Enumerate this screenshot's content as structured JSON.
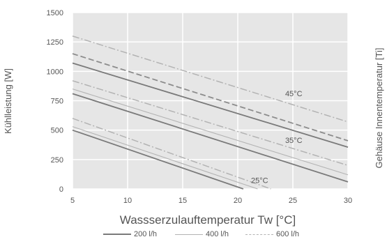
{
  "chart_data": {
    "type": "line",
    "xlabel": "Wassserzulauftemperatur Tw [°C]",
    "ylabel": "Kühlleistung [W]",
    "y2label": "Gehäuse Innentemperatur [Ti]",
    "xlim": [
      5,
      30
    ],
    "ylim": [
      0,
      1500
    ],
    "x_ticks": [
      5,
      10,
      15,
      20,
      25,
      30
    ],
    "y_ticks": [
      0,
      250,
      500,
      750,
      1000,
      1250,
      1500
    ],
    "grid": true,
    "background": "#e6e6e6",
    "legend": {
      "placement": "bottom",
      "entries": [
        {
          "label": "200 l/h",
          "style": "solid",
          "color": "#7a7a7a"
        },
        {
          "label": "400 l/h",
          "style": "solid-thin",
          "color": "#b3b3b3"
        },
        {
          "label": "600 l/h",
          "style": "dash-dot",
          "color": "#b3b3b3"
        }
      ]
    },
    "annotations": [
      {
        "text": "45°C",
        "x": 24.3,
        "y": 790
      },
      {
        "text": "35°C",
        "x": 24.3,
        "y": 390
      },
      {
        "text": "25°C",
        "x": 21.2,
        "y": 50
      }
    ],
    "series": [
      {
        "group": "45°C",
        "flow": "200 l/h",
        "style": "solid",
        "x": [
          5,
          30
        ],
        "y": [
          1070,
          355
        ]
      },
      {
        "group": "45°C",
        "flow": "400 l/h",
        "style": "dashed",
        "x": [
          5,
          30
        ],
        "y": [
          1150,
          410
        ]
      },
      {
        "group": "45°C",
        "flow": "600 l/h",
        "style": "dash-dot",
        "x": [
          5,
          30
        ],
        "y": [
          1300,
          570
        ]
      },
      {
        "group": "35°C",
        "flow": "200 l/h",
        "style": "solid",
        "x": [
          5,
          30
        ],
        "y": [
          810,
          60
        ]
      },
      {
        "group": "35°C",
        "flow": "400 l/h",
        "style": "solid-thin",
        "x": [
          5,
          30
        ],
        "y": [
          850,
          120
        ]
      },
      {
        "group": "35°C",
        "flow": "600 l/h",
        "style": "dash-dot",
        "x": [
          5,
          30
        ],
        "y": [
          920,
          200
        ]
      },
      {
        "group": "25°C",
        "flow": "200 l/h",
        "style": "solid",
        "x": [
          5,
          20.5
        ],
        "y": [
          500,
          0
        ]
      },
      {
        "group": "25°C",
        "flow": "400 l/h",
        "style": "solid-thin",
        "x": [
          5,
          21.8
        ],
        "y": [
          530,
          0
        ]
      },
      {
        "group": "25°C",
        "flow": "600 l/h",
        "style": "dash-dot",
        "x": [
          5,
          23
        ],
        "y": [
          600,
          0
        ]
      }
    ]
  }
}
